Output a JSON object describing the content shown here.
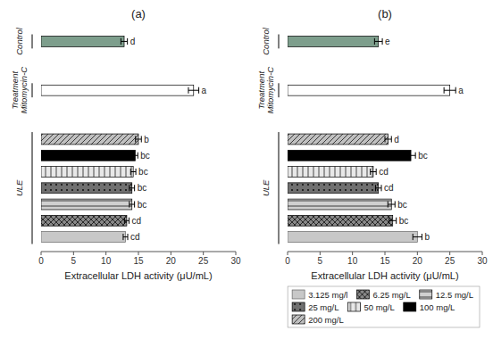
{
  "chart_data": [
    {
      "type": "bar",
      "orientation": "horizontal",
      "title": "(a)",
      "xlabel": "Extracellular LDH activity (μU/mL)",
      "categories": [
        "Control",
        "Mitomycin-C",
        "200 mg/L",
        "100 mg/L",
        "50 mg/L",
        "25 mg/L",
        "12.5 mg/L",
        "6.25 mg/L",
        "3.125 mg/l"
      ],
      "groups": [
        "Control",
        "Treatment\nMitomycin-C",
        "ULE",
        "ULE",
        "ULE",
        "ULE",
        "ULE",
        "ULE",
        "ULE"
      ],
      "values": [
        12.8,
        23.5,
        15.0,
        14.5,
        14.2,
        14.0,
        14.0,
        13.2,
        13.0
      ],
      "errors": [
        0.5,
        0.8,
        0.45,
        0.4,
        0.4,
        0.4,
        0.4,
        0.35,
        0.35
      ],
      "significance_labels": [
        "d",
        "a",
        "b",
        "bc",
        "bc",
        "bc",
        "bc",
        "cd",
        "cd"
      ],
      "colors": [
        "#7d9e8c",
        "#ffffff",
        "#c0c0c0",
        "#000000",
        "#e8e8e8",
        "#707070",
        "#d0d0d0",
        "#888888",
        "#c8c8c8"
      ],
      "xlim": [
        0,
        30
      ],
      "xticks": [
        0,
        5,
        10,
        15,
        20,
        25,
        30
      ],
      "tick_labels": "x",
      "grid": false
    },
    {
      "type": "bar",
      "orientation": "horizontal",
      "title": "(b)",
      "xlabel": "Extracellular LDH activity (μU/mL)",
      "categories": [
        "Control",
        "Mitomycin-C",
        "200 mg/L",
        "100 mg/L",
        "50 mg/L",
        "25 mg/L",
        "12.5 mg/L",
        "6.25 mg/L",
        "3.125 mg/l"
      ],
      "groups": [
        "Control",
        "Treatment\nMitomycin-C",
        "ULE",
        "ULE",
        "ULE",
        "ULE",
        "ULE",
        "ULE",
        "ULE"
      ],
      "values": [
        14.0,
        25.0,
        15.5,
        19.0,
        13.2,
        14.0,
        16.0,
        16.2,
        20.0
      ],
      "errors": [
        0.6,
        0.9,
        0.5,
        0.7,
        0.45,
        0.45,
        0.55,
        0.55,
        0.7
      ],
      "significance_labels": [
        "e",
        "a",
        "d",
        "bc",
        "cd",
        "cd",
        "bc",
        "bc",
        "b"
      ],
      "colors": [
        "#7d9e8c",
        "#ffffff",
        "#c0c0c0",
        "#000000",
        "#e8e8e8",
        "#707070",
        "#d0d0d0",
        "#888888",
        "#c8c8c8"
      ],
      "xlim": [
        0,
        30
      ],
      "xticks": [
        0,
        5,
        10,
        15,
        20,
        25,
        30
      ],
      "tick_labels": "x",
      "grid": false,
      "legend": "lower right",
      "legend_labels": [
        "3.125 mg/l",
        "6.25 mg/L",
        "12.5 mg/L",
        "25 mg/L",
        "50 mg/L",
        "100 mg/L",
        "200 mg/L"
      ]
    }
  ]
}
